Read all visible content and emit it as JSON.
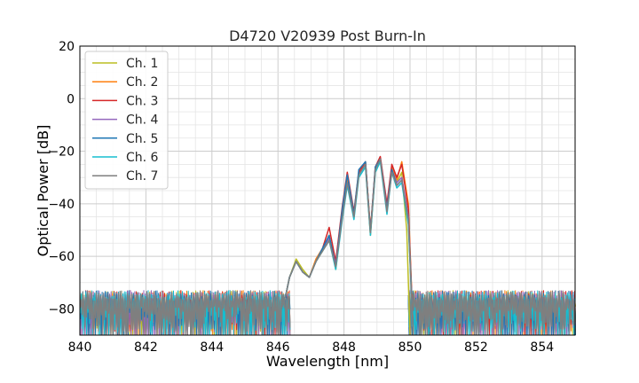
{
  "chart_data": {
    "type": "line",
    "title": "D4720 V20939 Post Burn-In",
    "xlabel": "Wavelength [nm]",
    "ylabel": "Optical Power [dB]",
    "xlim": [
      840,
      855
    ],
    "ylim": [
      -90,
      20
    ],
    "xticks": [
      840,
      842,
      844,
      846,
      848,
      850,
      852,
      854
    ],
    "yticks": [
      20,
      0,
      -20,
      -40,
      -60,
      -80
    ],
    "grid": true,
    "legend_position": "upper-left",
    "noise_floor": {
      "top": -73,
      "bottom": -90
    },
    "series": [
      {
        "name": "Ch. 1",
        "color": "#bcbd22",
        "points": [
          [
            846.1,
            -80
          ],
          [
            846.25,
            -74
          ],
          [
            846.35,
            -68
          ],
          [
            846.55,
            -61
          ],
          [
            846.75,
            -65
          ],
          [
            846.95,
            -68
          ],
          [
            847.15,
            -62
          ],
          [
            847.35,
            -58
          ],
          [
            847.55,
            -52
          ],
          [
            847.75,
            -65
          ],
          [
            847.95,
            -44
          ],
          [
            848.1,
            -31
          ],
          [
            848.3,
            -45
          ],
          [
            848.45,
            -28
          ],
          [
            848.65,
            -25
          ],
          [
            848.8,
            -52
          ],
          [
            848.95,
            -27
          ],
          [
            849.1,
            -23
          ],
          [
            849.3,
            -42
          ],
          [
            849.45,
            -28
          ],
          [
            849.6,
            -32
          ],
          [
            849.75,
            -28
          ],
          [
            849.9,
            -50
          ],
          [
            850.0,
            -90
          ]
        ]
      },
      {
        "name": "Ch. 2",
        "color": "#ff7f0e",
        "points": [
          [
            846.1,
            -80
          ],
          [
            846.25,
            -74
          ],
          [
            846.35,
            -68
          ],
          [
            846.55,
            -62
          ],
          [
            846.75,
            -66
          ],
          [
            846.95,
            -68
          ],
          [
            847.15,
            -61
          ],
          [
            847.35,
            -57
          ],
          [
            847.55,
            -53
          ],
          [
            847.75,
            -62
          ],
          [
            847.95,
            -43
          ],
          [
            848.1,
            -31
          ],
          [
            848.3,
            -44
          ],
          [
            848.45,
            -29
          ],
          [
            848.65,
            -24
          ],
          [
            848.8,
            -50
          ],
          [
            848.95,
            -27
          ],
          [
            849.1,
            -23
          ],
          [
            849.3,
            -41
          ],
          [
            849.45,
            -26
          ],
          [
            849.6,
            -31
          ],
          [
            849.75,
            -24
          ],
          [
            849.95,
            -40
          ],
          [
            850.1,
            -90
          ]
        ]
      },
      {
        "name": "Ch. 3",
        "color": "#d62728",
        "points": [
          [
            846.1,
            -80
          ],
          [
            846.25,
            -74
          ],
          [
            846.35,
            -68
          ],
          [
            846.55,
            -62
          ],
          [
            846.75,
            -66
          ],
          [
            846.95,
            -68
          ],
          [
            847.15,
            -62
          ],
          [
            847.35,
            -57
          ],
          [
            847.55,
            -49
          ],
          [
            847.75,
            -62
          ],
          [
            847.95,
            -41
          ],
          [
            848.1,
            -28
          ],
          [
            848.3,
            -43
          ],
          [
            848.45,
            -28
          ],
          [
            848.65,
            -24
          ],
          [
            848.8,
            -50
          ],
          [
            848.95,
            -26
          ],
          [
            849.1,
            -22
          ],
          [
            849.3,
            -40
          ],
          [
            849.45,
            -25
          ],
          [
            849.6,
            -30
          ],
          [
            849.75,
            -25
          ],
          [
            849.95,
            -42
          ],
          [
            850.1,
            -90
          ]
        ]
      },
      {
        "name": "Ch. 4",
        "color": "#9467bd",
        "points": [
          [
            846.1,
            -80
          ],
          [
            846.25,
            -74
          ],
          [
            846.35,
            -68
          ],
          [
            846.55,
            -62
          ],
          [
            846.75,
            -66
          ],
          [
            846.95,
            -68
          ],
          [
            847.15,
            -62
          ],
          [
            847.35,
            -57
          ],
          [
            847.55,
            -53
          ],
          [
            847.75,
            -63
          ],
          [
            847.95,
            -44
          ],
          [
            848.1,
            -32
          ],
          [
            848.3,
            -45
          ],
          [
            848.45,
            -29
          ],
          [
            848.65,
            -25
          ],
          [
            848.8,
            -51
          ],
          [
            848.95,
            -27
          ],
          [
            849.1,
            -23
          ],
          [
            849.3,
            -42
          ],
          [
            849.45,
            -27
          ],
          [
            849.6,
            -32
          ],
          [
            849.75,
            -30
          ],
          [
            849.95,
            -45
          ],
          [
            850.1,
            -90
          ]
        ]
      },
      {
        "name": "Ch. 5",
        "color": "#1f77b4",
        "points": [
          [
            846.1,
            -80
          ],
          [
            846.25,
            -74
          ],
          [
            846.35,
            -68
          ],
          [
            846.55,
            -62
          ],
          [
            846.75,
            -66
          ],
          [
            846.95,
            -68
          ],
          [
            847.15,
            -62
          ],
          [
            847.35,
            -57
          ],
          [
            847.55,
            -52
          ],
          [
            847.75,
            -64
          ],
          [
            847.95,
            -42
          ],
          [
            848.1,
            -29
          ],
          [
            848.3,
            -44
          ],
          [
            848.45,
            -27
          ],
          [
            848.65,
            -24
          ],
          [
            848.8,
            -51
          ],
          [
            848.95,
            -26
          ],
          [
            849.1,
            -23
          ],
          [
            849.3,
            -42
          ],
          [
            849.45,
            -27
          ],
          [
            849.6,
            -33
          ],
          [
            849.75,
            -31
          ],
          [
            849.95,
            -46
          ],
          [
            850.1,
            -90
          ]
        ]
      },
      {
        "name": "Ch. 6",
        "color": "#17becf",
        "points": [
          [
            846.1,
            -80
          ],
          [
            846.25,
            -74
          ],
          [
            846.35,
            -68
          ],
          [
            846.55,
            -62
          ],
          [
            846.75,
            -66
          ],
          [
            846.95,
            -68
          ],
          [
            847.15,
            -62
          ],
          [
            847.35,
            -58
          ],
          [
            847.55,
            -54
          ],
          [
            847.75,
            -65
          ],
          [
            847.95,
            -46
          ],
          [
            848.1,
            -33
          ],
          [
            848.3,
            -46
          ],
          [
            848.45,
            -30
          ],
          [
            848.65,
            -26
          ],
          [
            848.8,
            -52
          ],
          [
            848.95,
            -28
          ],
          [
            849.1,
            -24
          ],
          [
            849.3,
            -44
          ],
          [
            849.45,
            -28
          ],
          [
            849.6,
            -34
          ],
          [
            849.75,
            -32
          ],
          [
            849.95,
            -48
          ],
          [
            850.1,
            -90
          ]
        ]
      },
      {
        "name": "Ch. 7",
        "color": "#7f7f7f",
        "points": [
          [
            846.1,
            -80
          ],
          [
            846.25,
            -74
          ],
          [
            846.35,
            -68
          ],
          [
            846.55,
            -62
          ],
          [
            846.75,
            -66
          ],
          [
            846.95,
            -68
          ],
          [
            847.15,
            -62
          ],
          [
            847.35,
            -58
          ],
          [
            847.55,
            -54
          ],
          [
            847.75,
            -64
          ],
          [
            847.95,
            -45
          ],
          [
            848.1,
            -32
          ],
          [
            848.3,
            -45
          ],
          [
            848.45,
            -29
          ],
          [
            848.65,
            -25
          ],
          [
            848.8,
            -51
          ],
          [
            848.95,
            -27
          ],
          [
            849.1,
            -23
          ],
          [
            849.3,
            -43
          ],
          [
            849.45,
            -28
          ],
          [
            849.6,
            -33
          ],
          [
            849.75,
            -31
          ],
          [
            849.95,
            -46
          ],
          [
            850.1,
            -90
          ]
        ]
      }
    ]
  }
}
